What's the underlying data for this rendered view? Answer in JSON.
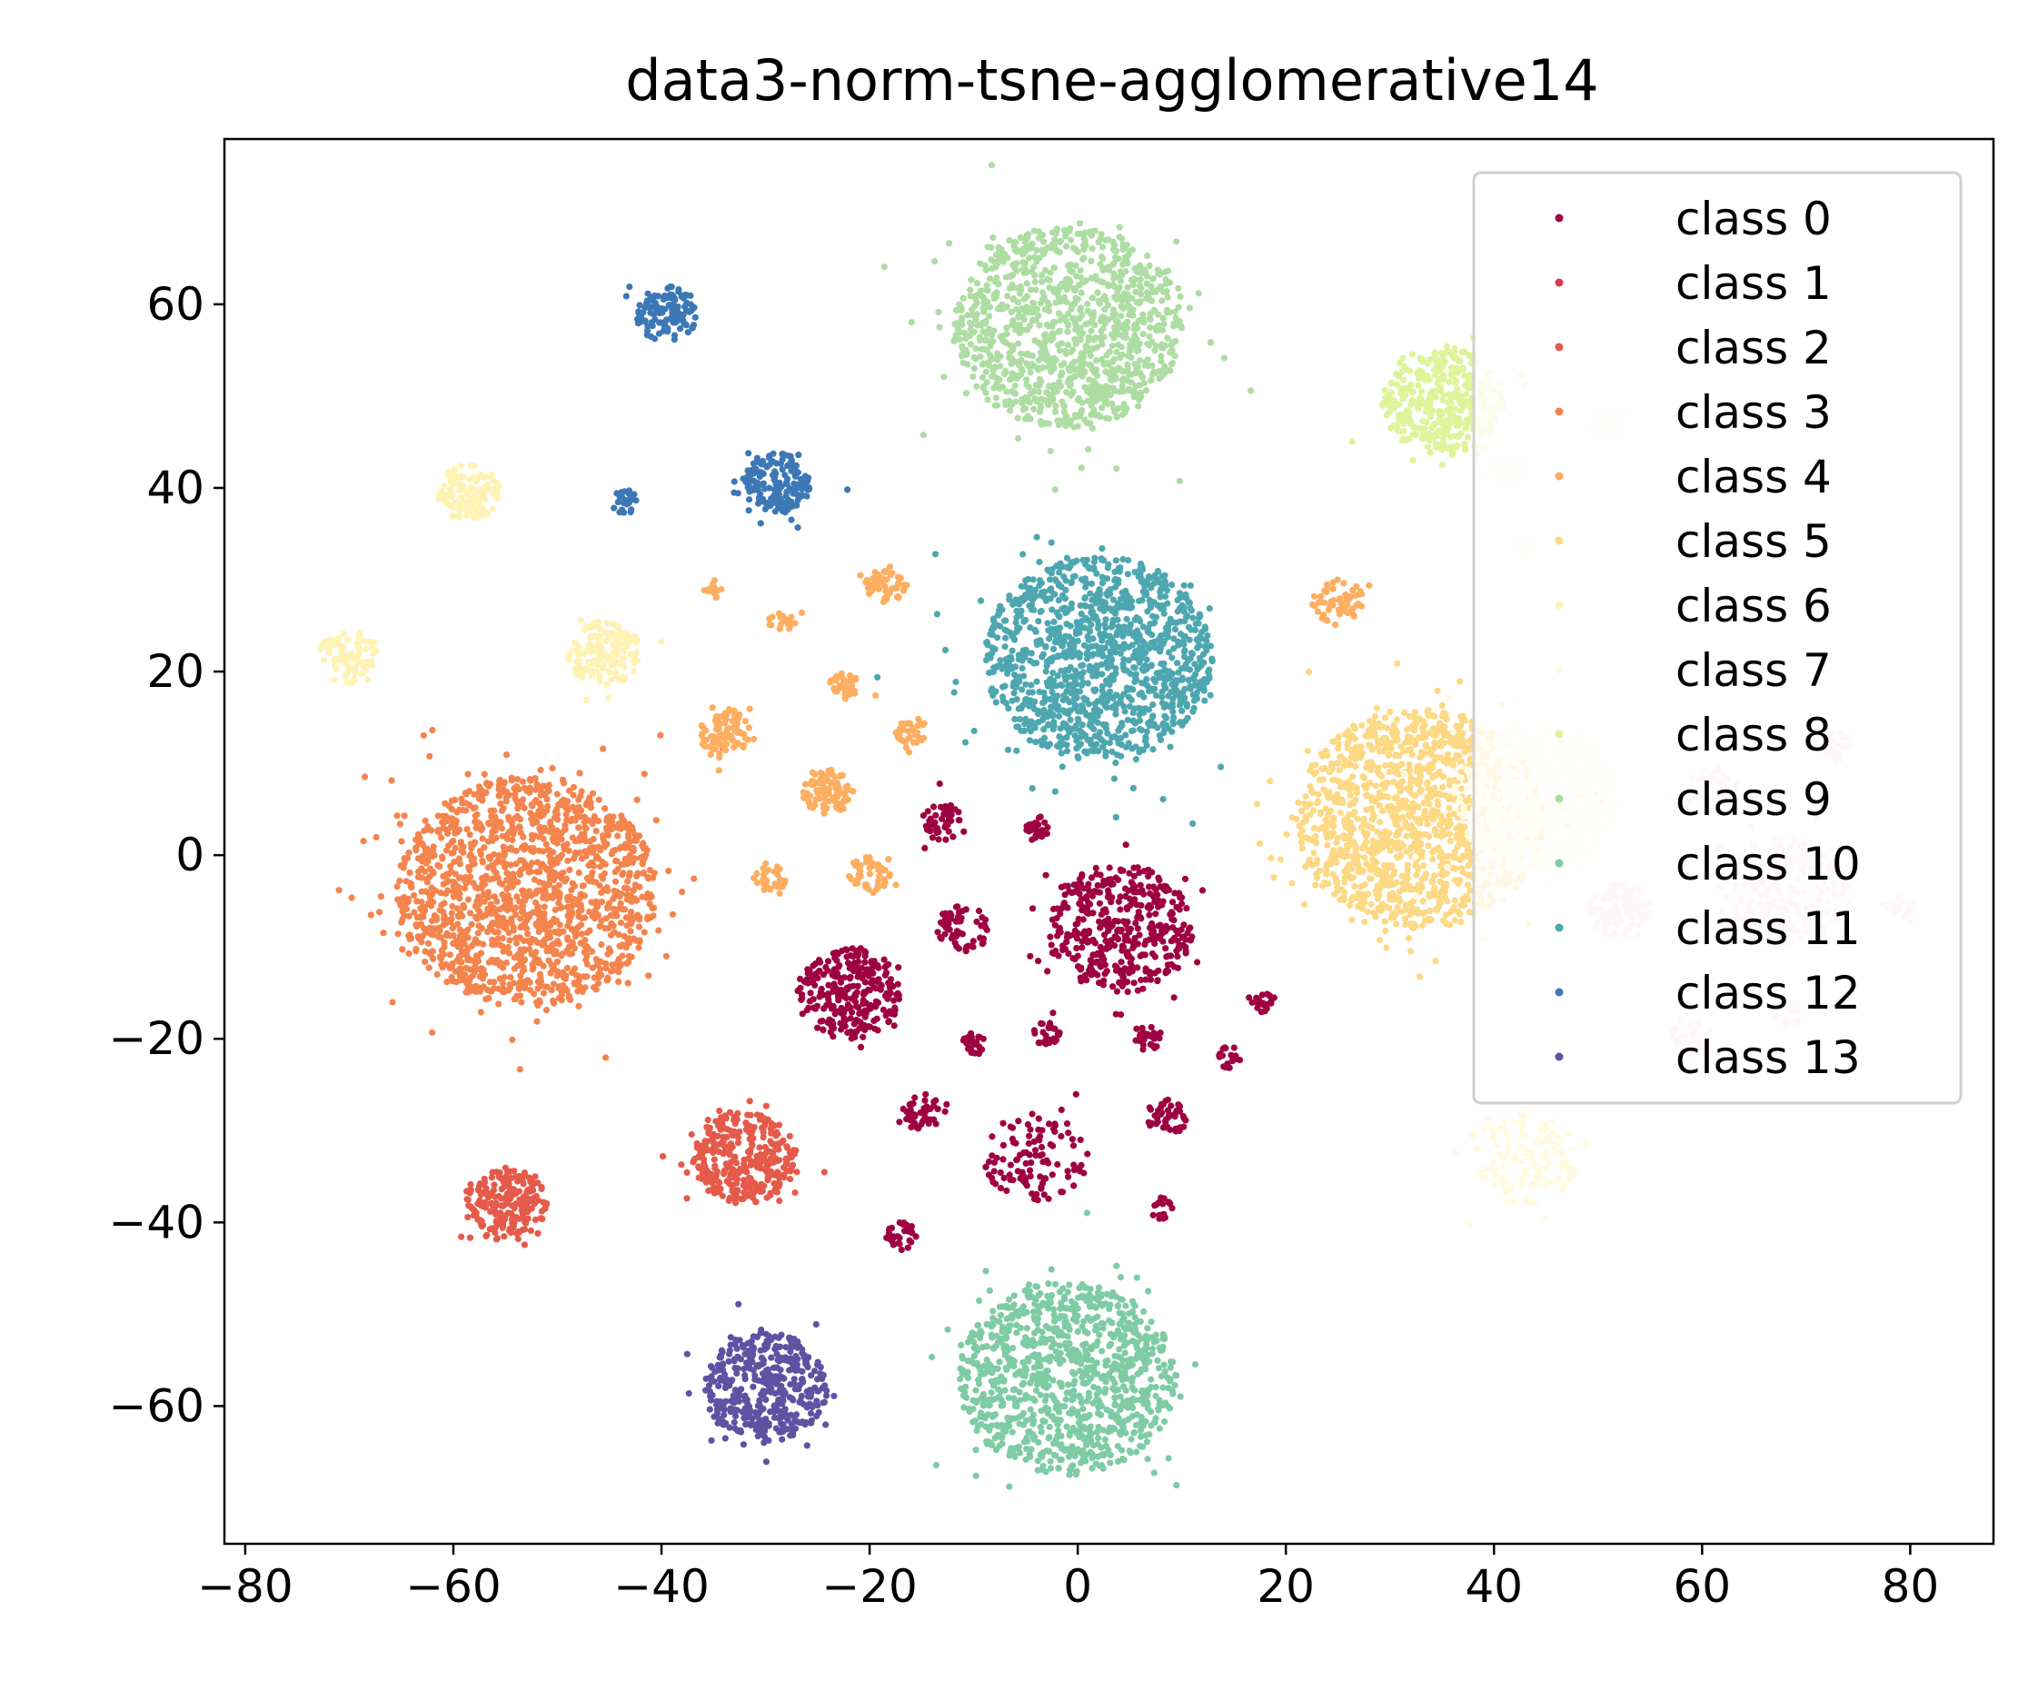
{
  "chart_data": {
    "type": "scatter",
    "title": "data3-norm-tsne-agglomerative14",
    "xlabel": "",
    "ylabel": "",
    "xlim": [
      -82,
      88
    ],
    "ylim": [
      -75,
      78
    ],
    "x_ticks": [
      -80,
      -60,
      -40,
      -20,
      0,
      20,
      40,
      60,
      80
    ],
    "x_tick_labels": [
      "−80",
      "−60",
      "−40",
      "−20",
      "0",
      "20",
      "40",
      "60",
      "80"
    ],
    "y_ticks": [
      60,
      40,
      20,
      0,
      -20,
      -40,
      -60
    ],
    "y_tick_labels": [
      "60",
      "40",
      "20",
      "0",
      "−20",
      "−40",
      "−60"
    ],
    "grid": false,
    "legend_position": "top-right",
    "series": [
      {
        "name": "class 0",
        "color": "#9e0142",
        "clusters": [
          {
            "cx": 4,
            "cy": -8,
            "r": 7,
            "n": 420
          },
          {
            "cx": -22,
            "cy": -15,
            "r": 5,
            "n": 260
          },
          {
            "cx": -4,
            "cy": -33,
            "r": 5,
            "n": 110
          },
          {
            "cx": -11,
            "cy": -8,
            "r": 2.5,
            "n": 60
          },
          {
            "cx": -13,
            "cy": 3.5,
            "r": 2,
            "n": 50
          },
          {
            "cx": -4,
            "cy": 3,
            "r": 1.3,
            "n": 25
          },
          {
            "cx": -15,
            "cy": -28,
            "r": 2,
            "n": 45
          },
          {
            "cx": 8.5,
            "cy": -28.5,
            "r": 2,
            "n": 45
          },
          {
            "cx": -17,
            "cy": -41.5,
            "r": 1.5,
            "n": 30
          },
          {
            "cx": 6.5,
            "cy": -20,
            "r": 1.4,
            "n": 30
          },
          {
            "cx": -3,
            "cy": -19.5,
            "r": 1.3,
            "n": 25
          },
          {
            "cx": -10,
            "cy": -20.5,
            "r": 1.3,
            "n": 25
          },
          {
            "cx": 14.5,
            "cy": -22,
            "r": 1.2,
            "n": 20
          },
          {
            "cx": 17.5,
            "cy": -16,
            "r": 1.2,
            "n": 20
          },
          {
            "cx": 8,
            "cy": -38.5,
            "r": 1.2,
            "n": 18
          }
        ]
      },
      {
        "name": "class 1",
        "color": "#d53e4f",
        "clusters": []
      },
      {
        "name": "class 2",
        "color": "#e55a4a",
        "clusters": [
          {
            "cx": -32,
            "cy": -33,
            "r": 5,
            "n": 330
          },
          {
            "cx": -55,
            "cy": -38,
            "r": 4,
            "n": 210
          }
        ]
      },
      {
        "name": "class 3",
        "color": "#f4844d",
        "clusters": [
          {
            "cx": -53,
            "cy": -4,
            "r": 12.5,
            "n": 1500
          }
        ]
      },
      {
        "name": "class 4",
        "color": "#fdae61",
        "clusters": [
          {
            "cx": -34,
            "cy": 13.5,
            "r": 2.5,
            "n": 90
          },
          {
            "cx": -24,
            "cy": 7,
            "r": 2.5,
            "n": 90
          },
          {
            "cx": -18.5,
            "cy": 29.5,
            "r": 2,
            "n": 55
          },
          {
            "cx": -22.5,
            "cy": 18.5,
            "r": 1.5,
            "n": 40
          },
          {
            "cx": -16,
            "cy": 13.5,
            "r": 1.5,
            "n": 35
          },
          {
            "cx": -20,
            "cy": -2,
            "r": 2,
            "n": 45
          },
          {
            "cx": -29.5,
            "cy": -2.5,
            "r": 1.5,
            "n": 35
          },
          {
            "cx": -28.5,
            "cy": 25.5,
            "r": 1.2,
            "n": 22
          },
          {
            "cx": -35,
            "cy": 29,
            "r": 1,
            "n": 14
          },
          {
            "cx": 25,
            "cy": 27.5,
            "r": 2.5,
            "n": 60
          }
        ]
      },
      {
        "name": "class 5",
        "color": "#fdd985",
        "clusters": [
          {
            "cx": 33,
            "cy": 4,
            "r": 12,
            "n": 1400
          }
        ]
      },
      {
        "name": "class 6",
        "color": "#fff2b5",
        "clusters": [
          {
            "cx": -58.5,
            "cy": 39.5,
            "r": 3,
            "n": 120
          },
          {
            "cx": -45.5,
            "cy": 22,
            "r": 3.5,
            "n": 150
          },
          {
            "cx": -70,
            "cy": 21.5,
            "r": 3,
            "n": 80
          }
        ]
      },
      {
        "name": "class 7",
        "color": "#fffbe2",
        "clusters": [
          {
            "cx": 44,
            "cy": 6,
            "r": 8,
            "n": 500
          },
          {
            "cx": 43,
            "cy": -33,
            "r": 5,
            "n": 150
          }
        ]
      },
      {
        "name": "class 8",
        "color": "#dff39a",
        "clusters": [
          {
            "cx": 35,
            "cy": 49.5,
            "r": 6,
            "n": 380
          }
        ]
      },
      {
        "name": "class 9",
        "color": "#addda2",
        "clusters": [
          {
            "cx": -1,
            "cy": 57.5,
            "r": 11,
            "n": 1100
          }
        ]
      },
      {
        "name": "class 10",
        "color": "#7ecba4",
        "clusters": [
          {
            "cx": -1,
            "cy": -57,
            "r": 10.5,
            "n": 1000
          }
        ]
      },
      {
        "name": "class 11",
        "color": "#4ea7b0",
        "clusters": [
          {
            "cx": 2,
            "cy": 21.5,
            "r": 11,
            "n": 1200
          }
        ]
      },
      {
        "name": "class 12",
        "color": "#3d78b6",
        "clusters": [
          {
            "cx": -29,
            "cy": 40.5,
            "r": 3.3,
            "n": 170
          },
          {
            "cx": -39.5,
            "cy": 59,
            "r": 3,
            "n": 130
          },
          {
            "cx": -43.5,
            "cy": 38.5,
            "r": 1.3,
            "n": 22
          }
        ]
      },
      {
        "name": "class 13",
        "color": "#5e52a3",
        "clusters": [
          {
            "cx": -30,
            "cy": -58,
            "r": 6,
            "n": 430
          }
        ]
      },
      {
        "name": "",
        "color": "#f2d6dc",
        "clusters": [
          {
            "cx": 52,
            "cy": -6,
            "r": 3,
            "n": 120
          },
          {
            "cx": 68,
            "cy": -4,
            "r": 6,
            "n": 230
          },
          {
            "cx": 61,
            "cy": 7,
            "r": 2.5,
            "n": 60
          },
          {
            "cx": 73,
            "cy": 12,
            "r": 1.5,
            "n": 30
          },
          {
            "cx": 79,
            "cy": -6,
            "r": 1.5,
            "n": 25
          },
          {
            "cx": 59,
            "cy": -19.5,
            "r": 2,
            "n": 40
          },
          {
            "cx": 68.5,
            "cy": -17,
            "r": 1.5,
            "n": 25
          }
        ]
      },
      {
        "name": "",
        "color": "#f7fbe8",
        "clusters": [
          {
            "cx": 41,
            "cy": 42,
            "r": 2,
            "n": 40
          },
          {
            "cx": 51,
            "cy": 47,
            "r": 2,
            "n": 35
          },
          {
            "cx": 43,
            "cy": 33.5,
            "r": 1.2,
            "n": 14
          }
        ]
      }
    ]
  }
}
